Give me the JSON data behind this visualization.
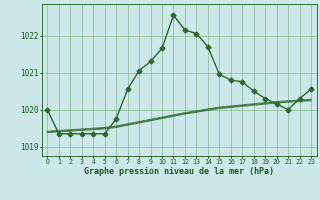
{
  "title": "Graphe pression niveau de la mer (hPa)",
  "x_values": [
    0,
    1,
    2,
    3,
    4,
    5,
    6,
    7,
    8,
    9,
    10,
    11,
    12,
    13,
    14,
    15,
    16,
    17,
    18,
    19,
    20,
    21,
    22,
    23
  ],
  "y_main": [
    1020.0,
    1019.35,
    1019.35,
    1019.35,
    1019.35,
    1019.35,
    1019.75,
    1020.55,
    1021.05,
    1021.3,
    1021.65,
    1022.55,
    1022.15,
    1022.05,
    1021.7,
    1020.95,
    1020.8,
    1020.75,
    1020.5,
    1020.3,
    1020.15,
    1020.0,
    1020.3,
    1020.55
  ],
  "y_trend1": [
    1019.42,
    1019.44,
    1019.46,
    1019.48,
    1019.5,
    1019.52,
    1019.56,
    1019.62,
    1019.68,
    1019.74,
    1019.8,
    1019.86,
    1019.92,
    1019.97,
    1020.02,
    1020.07,
    1020.1,
    1020.13,
    1020.16,
    1020.19,
    1020.22,
    1020.24,
    1020.26,
    1020.28
  ],
  "y_trend2": [
    1019.4,
    1019.42,
    1019.44,
    1019.46,
    1019.48,
    1019.5,
    1019.54,
    1019.6,
    1019.66,
    1019.72,
    1019.78,
    1019.84,
    1019.9,
    1019.95,
    1020.0,
    1020.05,
    1020.08,
    1020.11,
    1020.14,
    1020.17,
    1020.2,
    1020.22,
    1020.24,
    1020.26
  ],
  "y_trend3": [
    1019.38,
    1019.4,
    1019.42,
    1019.44,
    1019.46,
    1019.48,
    1019.52,
    1019.58,
    1019.64,
    1019.7,
    1019.76,
    1019.82,
    1019.88,
    1019.93,
    1019.98,
    1020.03,
    1020.06,
    1020.09,
    1020.12,
    1020.15,
    1020.18,
    1020.2,
    1020.22,
    1020.24
  ],
  "line_color": "#2d6a2d",
  "bg_color": "#cce8e8",
  "grid_color": "#66aa66",
  "text_color": "#1a5c1a",
  "ylim": [
    1018.75,
    1022.85
  ],
  "yticks": [
    1019,
    1020,
    1021,
    1022
  ],
  "xlim": [
    -0.5,
    23.5
  ]
}
